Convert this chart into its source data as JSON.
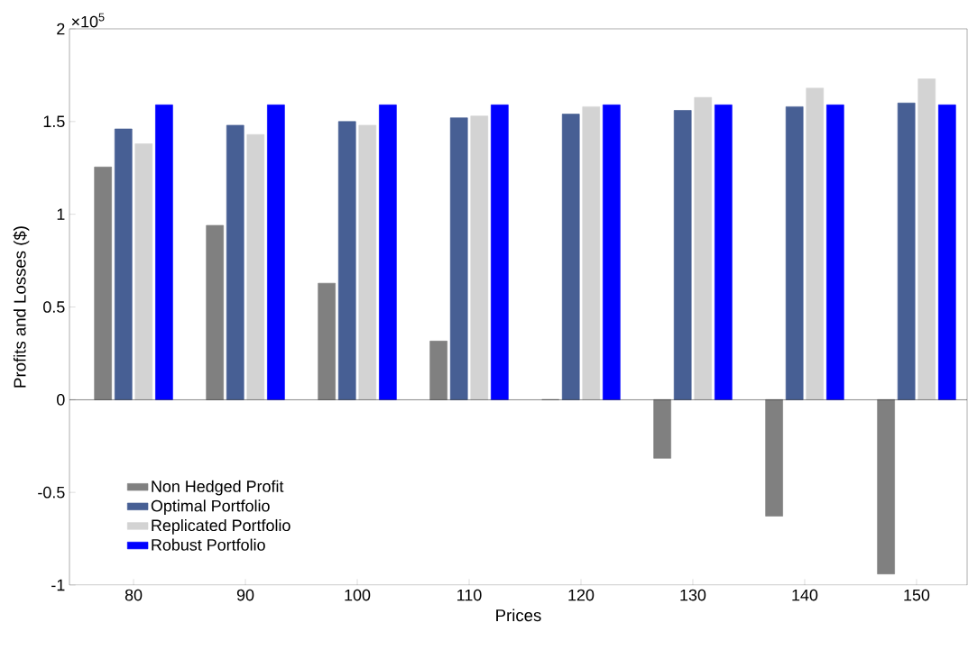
{
  "chart_data": {
    "type": "bar",
    "xlabel": "Prices",
    "ylabel": "Profits and Losses ($)",
    "categories": [
      "80",
      "90",
      "100",
      "110",
      "120",
      "130",
      "140",
      "150"
    ],
    "series": [
      {
        "name": "Non Hedged Profit",
        "color": "#808080",
        "values": [
          1.255,
          0.94,
          0.628,
          0.316,
          0,
          -0.316,
          -0.628,
          -0.94
        ]
      },
      {
        "name": "Optimal Portfolio",
        "color": "#475f94",
        "values": [
          1.46,
          1.48,
          1.5,
          1.52,
          1.54,
          1.56,
          1.58,
          1.6
        ]
      },
      {
        "name": "Replicated Portfolio",
        "color": "#d3d3d3",
        "values": [
          1.38,
          1.43,
          1.48,
          1.53,
          1.58,
          1.63,
          1.68,
          1.73
        ]
      },
      {
        "name": "Robust Portfolio",
        "color": "#0000ff",
        "values": [
          1.59,
          1.59,
          1.59,
          1.59,
          1.59,
          1.59,
          1.59,
          1.59
        ]
      }
    ],
    "ylim": [
      -1,
      2
    ],
    "yticks": [
      -1,
      -0.5,
      0,
      0.5,
      1,
      1.5,
      2
    ],
    "annotations": [
      "×10$^{5}$"
    ],
    "ref_lines": [
      {
        "axis": "y",
        "value": 0,
        "color": "#000000"
      }
    ],
    "legend": "bottom left",
    "grid": false
  }
}
